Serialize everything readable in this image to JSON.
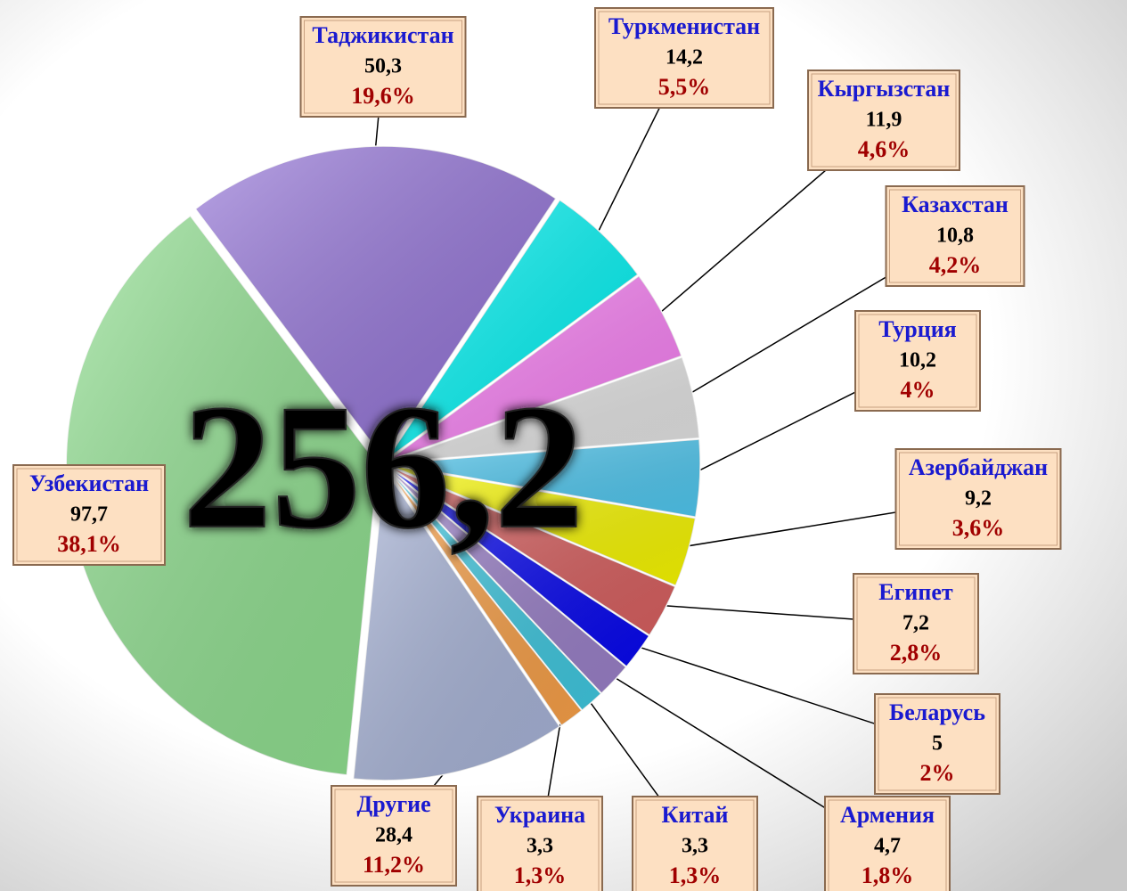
{
  "chart_data": {
    "type": "pie",
    "total_label": "256,2",
    "categories": [
      "Таджикистан",
      "Туркменистан",
      "Кыргызстан",
      "Казахстан",
      "Турция",
      "Азербайджан",
      "Египет",
      "Беларусь",
      "Армения",
      "Китай",
      "Украина",
      "Другие",
      "Узбекистан"
    ],
    "values": [
      50.3,
      14.2,
      11.9,
      10.8,
      10.2,
      9.2,
      7.2,
      5,
      4.7,
      3.3,
      3.3,
      28.4,
      97.7
    ],
    "value_labels": [
      "50,3",
      "14,2",
      "11,9",
      "10,8",
      "10,2",
      "9,2",
      "7,2",
      "5",
      "4,7",
      "3,3",
      "3,3",
      "28,4",
      "97,7"
    ],
    "percents": [
      19.6,
      5.5,
      4.6,
      4.2,
      4,
      3.6,
      2.8,
      2,
      1.8,
      1.3,
      1.3,
      11.2,
      38.1
    ],
    "percent_labels": [
      "19,6%",
      "5,5%",
      "4,6%",
      "4,2%",
      "4%",
      "3,6%",
      "2,8%",
      "2%",
      "1,8%",
      "1,3%",
      "1,3%",
      "11,2%",
      "38,1%"
    ],
    "colors": [
      "#9474d8",
      "#00f4f4",
      "#f880f4",
      "#e4e4e4",
      "#50c8f0",
      "#f8f800",
      "#d86060",
      "#0808f0",
      "#9a80c8",
      "#40c8e0",
      "#f8a048",
      "#a8b4d8",
      "#90e090"
    ]
  }
}
